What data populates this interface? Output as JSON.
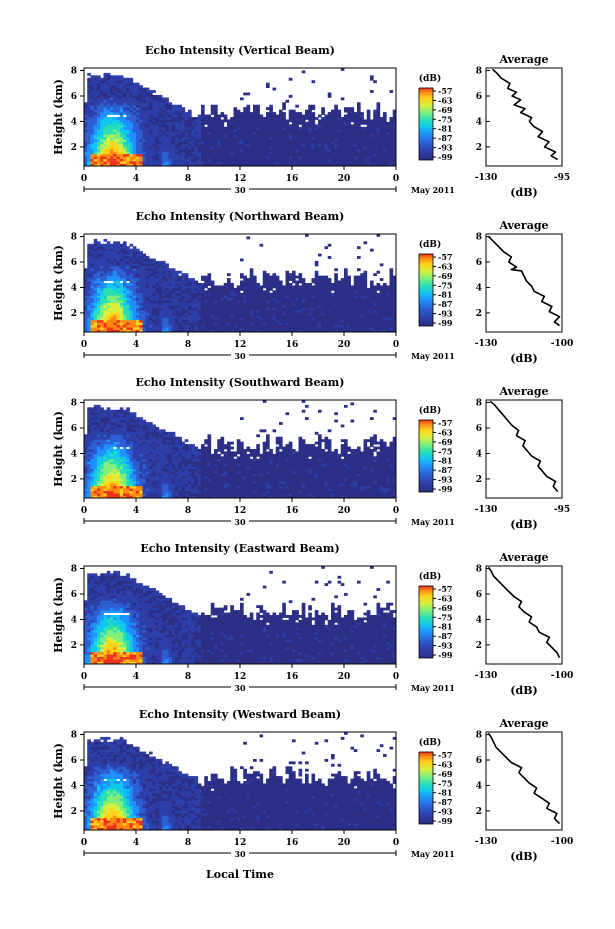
{
  "chart_data": [
    {
      "type": "heatmap",
      "title": "Echo Intensity (Vertical Beam)",
      "ylabel": "Height (km)",
      "x_ticks": [
        "0",
        "4",
        "8",
        "12",
        "16",
        "20",
        "0"
      ],
      "date_label": "30",
      "month_label": "May 2011",
      "y_ticks": [
        "2",
        "4",
        "6",
        "8"
      ],
      "xlim": [
        0,
        24
      ],
      "ylim": [
        0.5,
        8.2
      ],
      "colorbar_unit": "(dB)",
      "colorbar_ticks": [
        "-57",
        "-63",
        "-69",
        "-75",
        "-81",
        "-87",
        "-93",
        "-99"
      ],
      "profile": {
        "title": "Average",
        "xlabel": "(dB)",
        "x_ticks": [
          "-130",
          "-95"
        ],
        "xlim": [
          -130,
          -95
        ],
        "y_ticks": [
          "2",
          "4",
          "6",
          "8"
        ],
        "points": [
          [
            -97,
            1.0
          ],
          [
            -100,
            1.3
          ],
          [
            -98,
            1.6
          ],
          [
            -103,
            2.0
          ],
          [
            -101,
            2.4
          ],
          [
            -106,
            2.8
          ],
          [
            -104,
            3.2
          ],
          [
            -108,
            3.6
          ],
          [
            -110,
            4.0
          ],
          [
            -109,
            4.3
          ],
          [
            -114,
            4.7
          ],
          [
            -112,
            5.0
          ],
          [
            -117,
            5.3
          ],
          [
            -114,
            5.7
          ],
          [
            -118,
            6.0
          ],
          [
            -116,
            6.3
          ],
          [
            -120,
            6.6
          ],
          [
            -119,
            7.0
          ],
          [
            -123,
            7.4
          ],
          [
            -125,
            7.8
          ],
          [
            -127,
            8.1
          ]
        ]
      }
    },
    {
      "type": "heatmap",
      "title": "Echo Intensity (Northward Beam)",
      "ylabel": "Height (km)",
      "x_ticks": [
        "0",
        "4",
        "8",
        "12",
        "16",
        "20",
        "0"
      ],
      "date_label": "30",
      "month_label": "May 2011",
      "y_ticks": [
        "2",
        "4",
        "6",
        "8"
      ],
      "xlim": [
        0,
        24
      ],
      "ylim": [
        0.5,
        8.2
      ],
      "colorbar_unit": "(dB)",
      "colorbar_ticks": [
        "-57",
        "-63",
        "-69",
        "-75",
        "-81",
        "-87",
        "-93",
        "-99"
      ],
      "profile": {
        "title": "Average",
        "xlabel": "(dB)",
        "x_ticks": [
          "-130",
          "-100"
        ],
        "xlim": [
          -130,
          -100
        ],
        "y_ticks": [
          "2",
          "4",
          "6",
          "8"
        ],
        "points": [
          [
            -101,
            1.0
          ],
          [
            -103,
            1.3
          ],
          [
            -101,
            1.7
          ],
          [
            -105,
            2.1
          ],
          [
            -104,
            2.5
          ],
          [
            -108,
            2.9
          ],
          [
            -107,
            3.3
          ],
          [
            -111,
            3.7
          ],
          [
            -112,
            4.1
          ],
          [
            -114,
            4.5
          ],
          [
            -115,
            4.9
          ],
          [
            -116,
            5.3
          ],
          [
            -120,
            5.4
          ],
          [
            -118,
            5.6
          ],
          [
            -121,
            6.0
          ],
          [
            -120,
            6.4
          ],
          [
            -123,
            6.8
          ],
          [
            -125,
            7.2
          ],
          [
            -127,
            7.6
          ],
          [
            -129,
            8.0
          ]
        ]
      }
    },
    {
      "type": "heatmap",
      "title": "Echo Intensity (Southward Beam)",
      "ylabel": "Height (km)",
      "x_ticks": [
        "0",
        "4",
        "8",
        "12",
        "16",
        "20",
        "0"
      ],
      "date_label": "30",
      "month_label": "May 2011",
      "y_ticks": [
        "2",
        "4",
        "6",
        "8"
      ],
      "xlim": [
        0,
        24
      ],
      "ylim": [
        0.5,
        8.2
      ],
      "colorbar_unit": "(dB)",
      "colorbar_ticks": [
        "-57",
        "-63",
        "-69",
        "-75",
        "-81",
        "-87",
        "-93",
        "-99"
      ],
      "profile": {
        "title": "Average",
        "xlabel": "(dB)",
        "x_ticks": [
          "-130",
          "-95"
        ],
        "xlim": [
          -130,
          -95
        ],
        "y_ticks": [
          "2",
          "4",
          "6",
          "8"
        ],
        "points": [
          [
            -97,
            1.0
          ],
          [
            -99,
            1.4
          ],
          [
            -98,
            1.8
          ],
          [
            -102,
            2.2
          ],
          [
            -104,
            2.6
          ],
          [
            -106,
            3.0
          ],
          [
            -105,
            3.4
          ],
          [
            -109,
            3.8
          ],
          [
            -111,
            4.2
          ],
          [
            -113,
            4.6
          ],
          [
            -112,
            5.0
          ],
          [
            -116,
            5.4
          ],
          [
            -115,
            5.8
          ],
          [
            -118,
            6.2
          ],
          [
            -120,
            6.6
          ],
          [
            -122,
            7.0
          ],
          [
            -124,
            7.4
          ],
          [
            -126,
            7.8
          ],
          [
            -128,
            8.1
          ]
        ]
      }
    },
    {
      "type": "heatmap",
      "title": "Echo Intensity (Eastward Beam)",
      "ylabel": "Height (km)",
      "x_ticks": [
        "0",
        "4",
        "8",
        "12",
        "16",
        "20",
        "0"
      ],
      "date_label": "30",
      "month_label": "May 2011",
      "y_ticks": [
        "2",
        "4",
        "6",
        "8"
      ],
      "xlim": [
        0,
        24
      ],
      "ylim": [
        0.5,
        8.2
      ],
      "colorbar_unit": "(dB)",
      "colorbar_ticks": [
        "-57",
        "-63",
        "-69",
        "-75",
        "-81",
        "-87",
        "-93",
        "-99"
      ],
      "profile": {
        "title": "Average",
        "xlabel": "(dB)",
        "x_ticks": [
          "-130",
          "-100"
        ],
        "xlim": [
          -130,
          -100
        ],
        "y_ticks": [
          "2",
          "4",
          "6",
          "8"
        ],
        "points": [
          [
            -101,
            1.0
          ],
          [
            -102,
            1.4
          ],
          [
            -104,
            1.8
          ],
          [
            -106,
            2.2
          ],
          [
            -105,
            2.6
          ],
          [
            -109,
            3.0
          ],
          [
            -110,
            3.4
          ],
          [
            -113,
            3.8
          ],
          [
            -112,
            4.2
          ],
          [
            -115,
            4.6
          ],
          [
            -117,
            5.0
          ],
          [
            -116,
            5.4
          ],
          [
            -119,
            5.8
          ],
          [
            -121,
            6.2
          ],
          [
            -123,
            6.6
          ],
          [
            -125,
            7.0
          ],
          [
            -127,
            7.4
          ],
          [
            -128,
            7.8
          ],
          [
            -129,
            8.1
          ]
        ]
      }
    },
    {
      "type": "heatmap",
      "title": "Echo Intensity (Westward Beam)",
      "ylabel": "Height (km)",
      "x_ticks": [
        "0",
        "4",
        "8",
        "12",
        "16",
        "20",
        "0"
      ],
      "date_label": "30",
      "month_label": "May 2011",
      "y_ticks": [
        "2",
        "4",
        "6",
        "8"
      ],
      "xlim": [
        0,
        24
      ],
      "ylim": [
        0.5,
        8.2
      ],
      "colorbar_unit": "(dB)",
      "colorbar_ticks": [
        "-57",
        "-63",
        "-69",
        "-75",
        "-81",
        "-87",
        "-93",
        "-99"
      ],
      "profile": {
        "title": "Average",
        "xlabel": "(dB)",
        "x_ticks": [
          "-130",
          "-100"
        ],
        "xlim": [
          -130,
          -100
        ],
        "y_ticks": [
          "2",
          "4",
          "6",
          "8"
        ],
        "points": [
          [
            -101,
            1.0
          ],
          [
            -103,
            1.4
          ],
          [
            -102,
            1.8
          ],
          [
            -106,
            2.2
          ],
          [
            -105,
            2.6
          ],
          [
            -108,
            3.0
          ],
          [
            -111,
            3.4
          ],
          [
            -110,
            3.8
          ],
          [
            -113,
            4.2
          ],
          [
            -115,
            4.6
          ],
          [
            -117,
            5.0
          ],
          [
            -116,
            5.4
          ],
          [
            -120,
            5.8
          ],
          [
            -122,
            6.2
          ],
          [
            -124,
            6.6
          ],
          [
            -126,
            7.0
          ],
          [
            -127,
            7.4
          ],
          [
            -128,
            7.8
          ],
          [
            -129,
            8.1
          ]
        ]
      }
    }
  ],
  "xlabel": "Local Time",
  "colormap": [
    "#2c2f86",
    "#2d3ea8",
    "#2d5fd2",
    "#1e90ff",
    "#11c7f0",
    "#29e0b4",
    "#7ef07a",
    "#d8f03c",
    "#ffd21a",
    "#ff8a14",
    "#f0321c"
  ],
  "no_data_color": "#ffffff"
}
